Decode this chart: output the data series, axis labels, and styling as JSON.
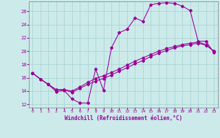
{
  "xlabel": "Windchill (Refroidissement éolien,°C)",
  "ylabel": "",
  "bg_color": "#cceaea",
  "grid_color": "#aad4d4",
  "line_color": "#990099",
  "xlim": [
    -0.5,
    23.5
  ],
  "ylim": [
    11.5,
    27.5
  ],
  "xticks": [
    0,
    1,
    2,
    3,
    4,
    5,
    6,
    7,
    8,
    9,
    10,
    11,
    12,
    13,
    14,
    15,
    16,
    17,
    18,
    19,
    20,
    21,
    22,
    23
  ],
  "yticks": [
    12,
    14,
    16,
    18,
    20,
    22,
    24,
    26
  ],
  "line1_x": [
    0,
    1,
    2,
    3,
    4,
    5,
    6,
    7,
    8,
    9,
    10,
    11,
    12,
    13,
    14,
    15,
    16,
    17,
    18,
    19,
    20,
    21,
    22,
    23
  ],
  "line1_y": [
    16.7,
    15.8,
    15.0,
    13.9,
    14.1,
    12.8,
    12.2,
    12.2,
    17.3,
    14.1,
    20.5,
    22.8,
    23.3,
    25.0,
    24.5,
    27.0,
    27.2,
    27.3,
    27.2,
    26.8,
    26.1,
    21.5,
    21.5,
    19.8
  ],
  "line2_x": [
    0,
    1,
    2,
    3,
    4,
    5,
    6,
    7,
    8,
    9,
    10,
    11,
    12,
    13,
    14,
    15,
    16,
    17,
    18,
    19,
    20,
    21,
    22,
    23
  ],
  "line2_y": [
    16.7,
    15.8,
    15.0,
    14.2,
    14.2,
    13.8,
    14.4,
    15.0,
    15.5,
    15.9,
    16.4,
    17.0,
    17.5,
    18.1,
    18.6,
    19.2,
    19.7,
    20.1,
    20.5,
    20.8,
    21.0,
    21.2,
    20.9,
    20.0
  ],
  "line3_x": [
    0,
    1,
    2,
    3,
    4,
    5,
    6,
    7,
    8,
    9,
    10,
    11,
    12,
    13,
    14,
    15,
    16,
    17,
    18,
    19,
    20,
    21,
    22,
    23
  ],
  "line3_y": [
    16.7,
    15.8,
    15.0,
    14.2,
    14.2,
    14.0,
    14.6,
    15.3,
    15.9,
    16.3,
    16.8,
    17.3,
    17.9,
    18.5,
    19.0,
    19.5,
    20.0,
    20.4,
    20.7,
    21.0,
    21.2,
    21.4,
    21.0,
    20.0
  ]
}
